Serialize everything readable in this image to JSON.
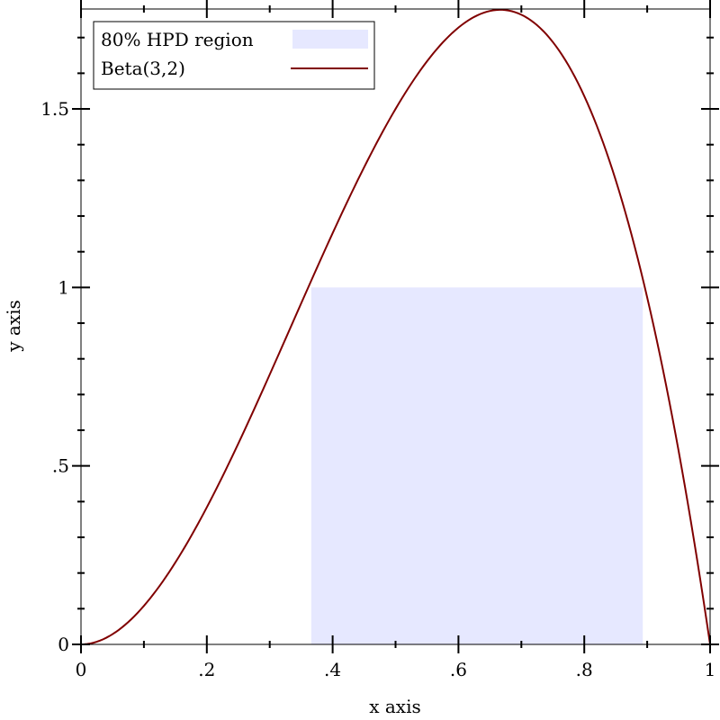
{
  "chart_data": {
    "type": "area",
    "title": "",
    "xlabel": "x axis",
    "ylabel": "y axis",
    "xlim": [
      0,
      1
    ],
    "ylim": [
      0,
      1.78
    ],
    "x_ticks": [
      {
        "value": 0,
        "label": "0"
      },
      {
        "value": 0.2,
        "label": ".2"
      },
      {
        "value": 0.4,
        "label": ".4"
      },
      {
        "value": 0.6,
        "label": ".6"
      },
      {
        "value": 0.8,
        "label": ".8"
      },
      {
        "value": 1,
        "label": "1"
      }
    ],
    "y_ticks": [
      {
        "value": 0,
        "label": "0"
      },
      {
        "value": 0.5,
        "label": ".5"
      },
      {
        "value": 1,
        "label": "1"
      },
      {
        "value": 1.5,
        "label": "1.5"
      }
    ],
    "grid": false,
    "legend_position": "top-left",
    "series": [
      {
        "name": "80% HPD region",
        "kind": "shaded-interval",
        "color": "#e6e8ff",
        "x_range": [
          0.366,
          0.893
        ]
      },
      {
        "name": "Beta(3,2)",
        "kind": "line",
        "color": "#800000",
        "x": [
          0.0,
          0.05,
          0.1,
          0.15,
          0.2,
          0.25,
          0.3,
          0.35,
          0.4,
          0.45,
          0.5,
          0.55,
          0.6,
          0.65,
          0.6667,
          0.7,
          0.75,
          0.8,
          0.85,
          0.9,
          0.95,
          1.0
        ],
        "values": [
          0.0,
          0.0285,
          0.108,
          0.2295,
          0.384,
          0.5625,
          0.756,
          0.9555,
          1.152,
          1.3365,
          1.5,
          1.6335,
          1.728,
          1.7745,
          1.7778,
          1.764,
          1.6875,
          1.536,
          1.3005,
          0.972,
          0.5415,
          0.0
        ]
      }
    ]
  }
}
